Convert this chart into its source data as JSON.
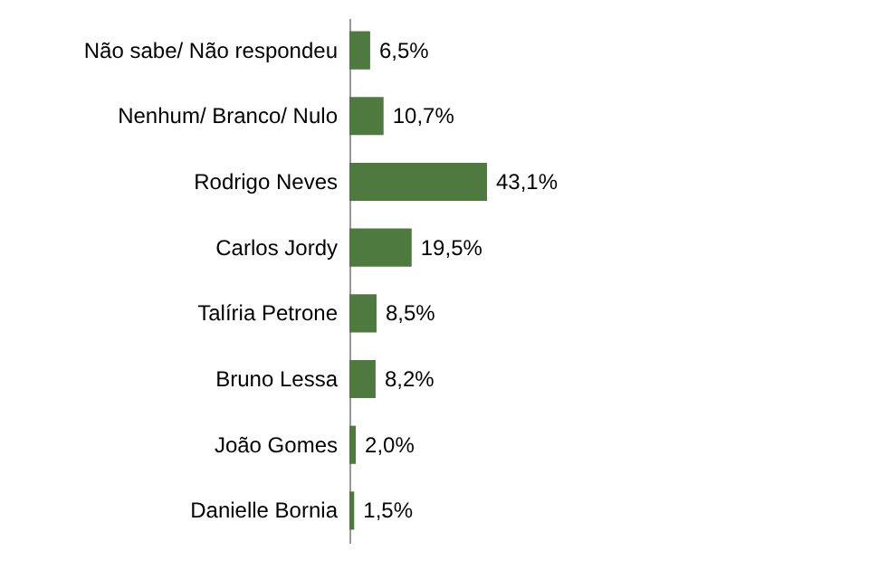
{
  "chart_data": {
    "type": "bar",
    "orientation": "horizontal",
    "categories": [
      "Não sabe/ Não respondeu",
      "Nenhum/ Branco/ Nulo",
      "Rodrigo Neves",
      "Carlos Jordy",
      "Talíria Petrone",
      "Bruno Lessa",
      "João Gomes",
      "Danielle Bornia"
    ],
    "values": [
      6.5,
      10.7,
      43.1,
      19.5,
      8.5,
      8.2,
      2.0,
      1.5
    ],
    "value_labels": [
      "6,5%",
      "10,7%",
      "43,1%",
      "19,5%",
      "8,5%",
      "8,2%",
      "2,0%",
      "1,5%"
    ],
    "color": "#4f7a3f"
  }
}
